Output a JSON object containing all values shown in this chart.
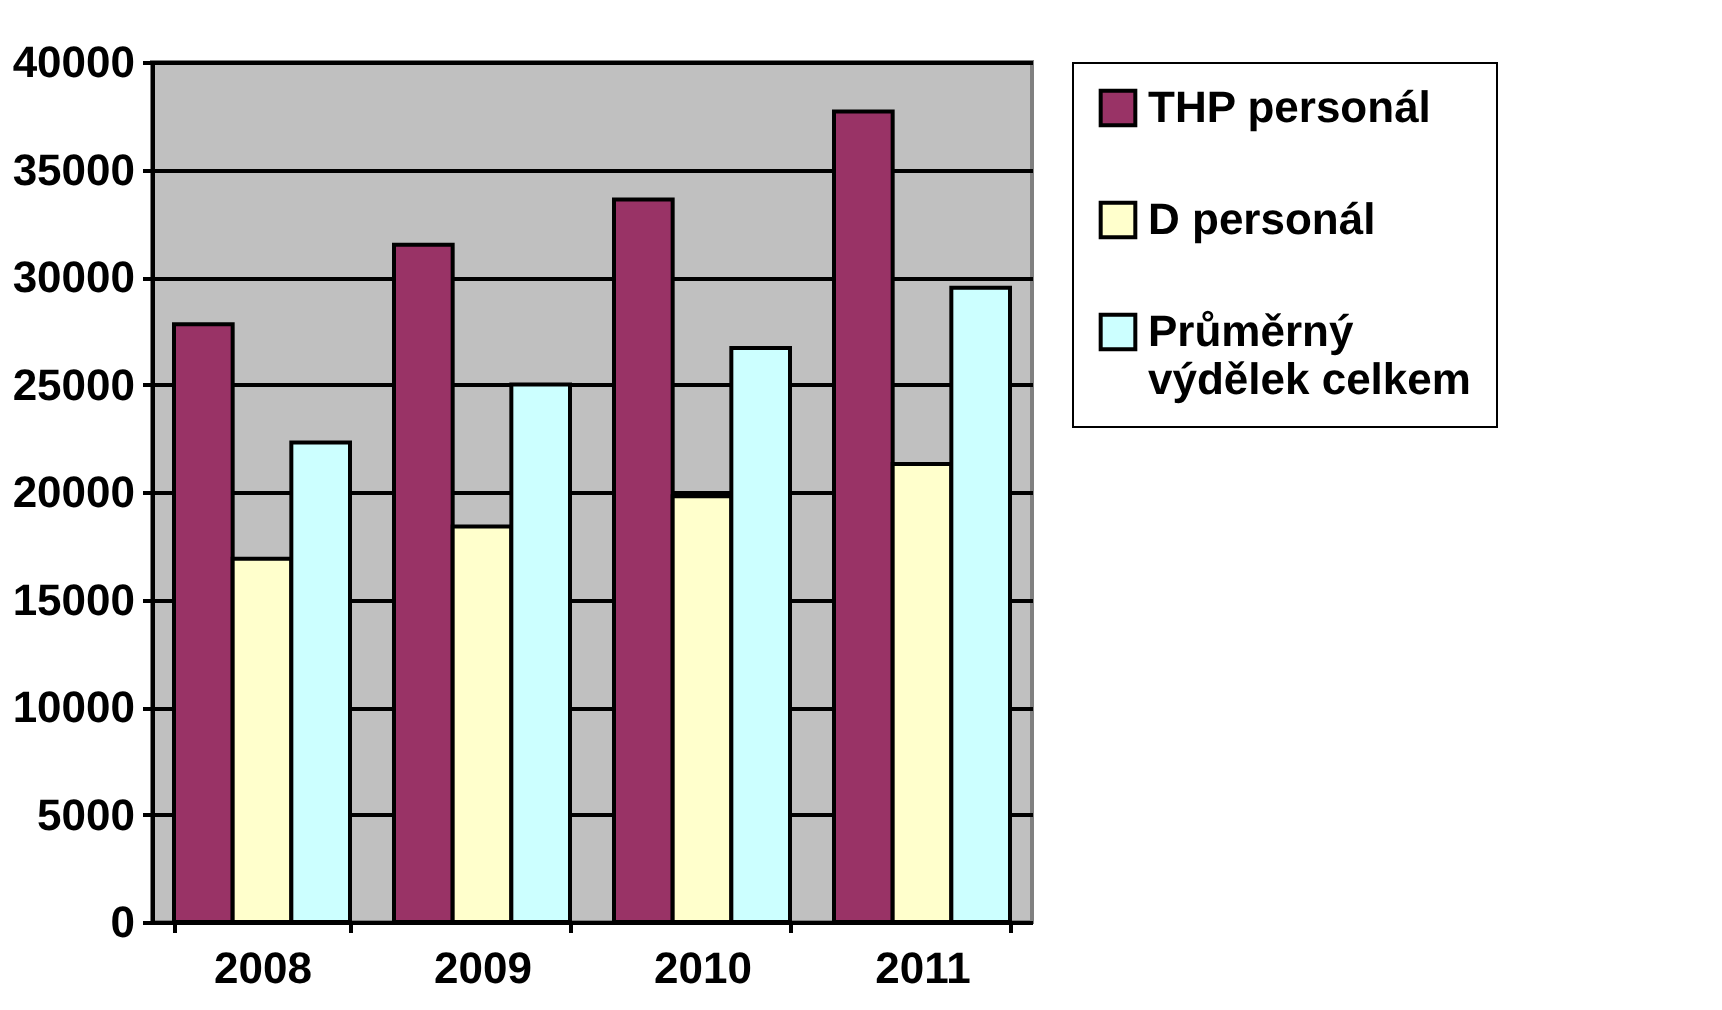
{
  "chart_data": {
    "type": "bar",
    "categories": [
      "2008",
      "2009",
      "2010",
      "2011"
    ],
    "series": [
      {
        "name": "THP personál",
        "color": "#993366",
        "values": [
          27800,
          31500,
          33600,
          37700
        ]
      },
      {
        "name": "D personál",
        "color": "#ffffcc",
        "values": [
          16900,
          18400,
          19800,
          21300
        ]
      },
      {
        "name": "Průměrný výdělek celkem",
        "color": "#ccffff",
        "values": [
          22300,
          25000,
          26700,
          29500
        ]
      }
    ],
    "ylim": [
      0,
      40000
    ],
    "yticks": [
      0,
      5000,
      10000,
      15000,
      20000,
      25000,
      30000,
      35000,
      40000
    ],
    "grid": "y",
    "legend": "right"
  }
}
